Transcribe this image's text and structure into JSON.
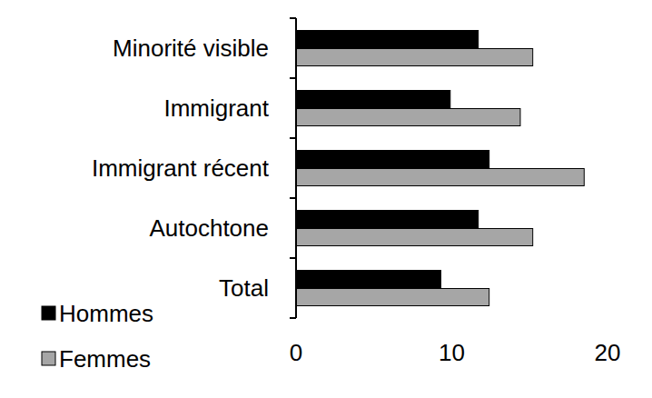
{
  "chart_data": {
    "type": "bar",
    "orientation": "horizontal",
    "categories": [
      "Minorité visible",
      "Immigrant",
      "Immigrant récent",
      "Autochtone",
      "Total"
    ],
    "series": [
      {
        "name": "Hommes",
        "color": "#000000",
        "values": [
          11.7,
          9.9,
          12.4,
          11.7,
          9.3
        ]
      },
      {
        "name": "Femmes",
        "color": "#a6a6a6",
        "values": [
          15.2,
          14.4,
          18.5,
          15.2,
          12.4
        ]
      }
    ],
    "xlim": [
      0,
      20
    ],
    "xticks": [
      0,
      10,
      20
    ],
    "grid": false,
    "legend": "lower left"
  }
}
